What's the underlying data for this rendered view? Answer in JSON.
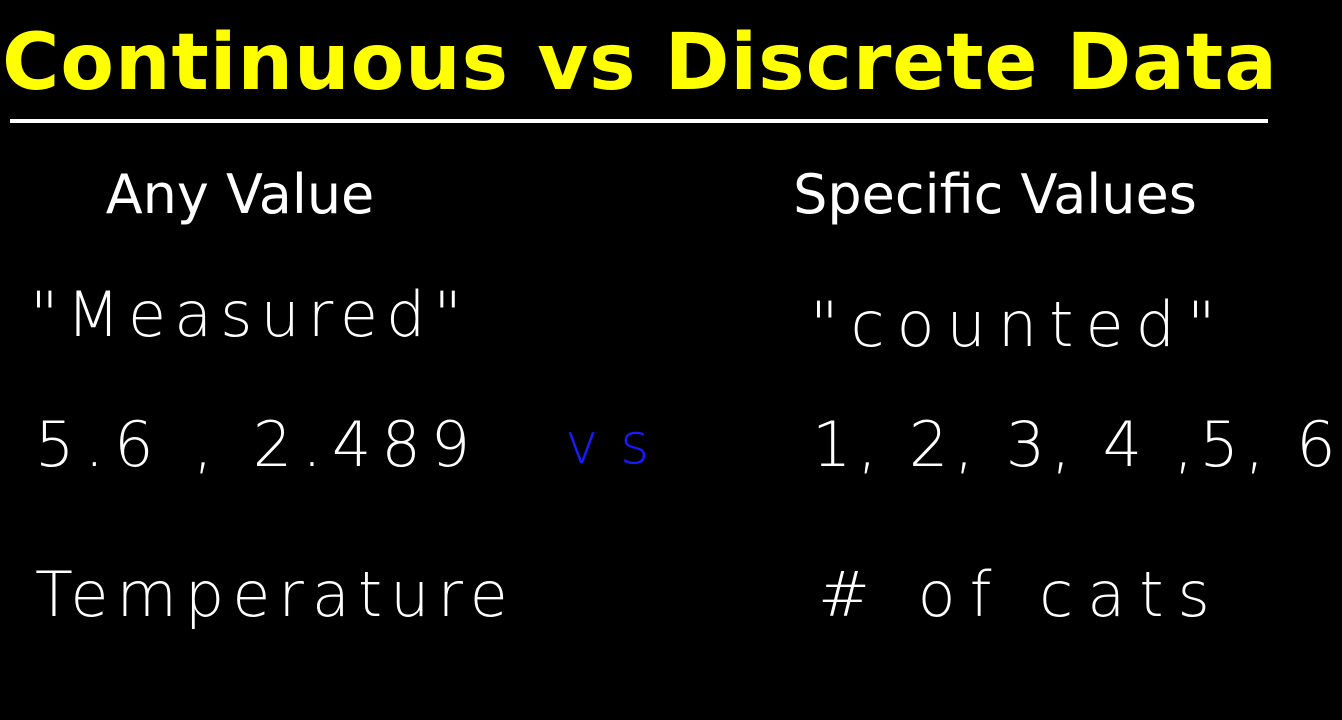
{
  "header": {
    "title": "Continuous vs Discrete Data"
  },
  "left": {
    "heading": "Any Value",
    "rows": [
      "\"Measured\"",
      "5.6 , 2.489",
      "Temperature"
    ]
  },
  "middle": {
    "label": "vs"
  },
  "right": {
    "heading": "Specific Values",
    "rows": [
      "\"counted\"",
      "1, 2, 3, 4 ,5, 6",
      "# of cats"
    ]
  }
}
